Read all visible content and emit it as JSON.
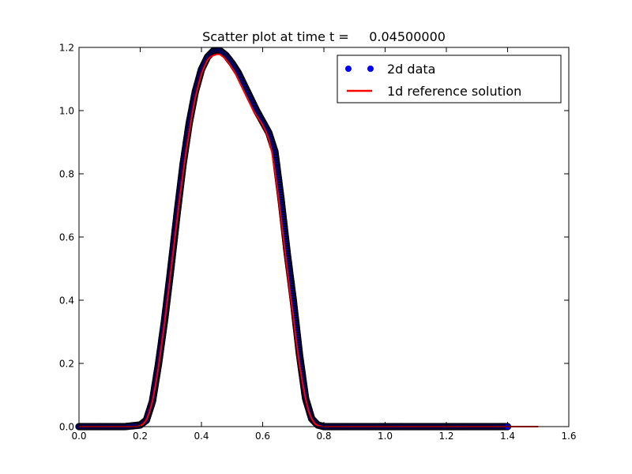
{
  "chart_data": {
    "type": "scatter",
    "title": "Scatter plot at time t =     0.04500000",
    "xlabel": "",
    "ylabel": "",
    "xlim": [
      0.0,
      1.6
    ],
    "ylim": [
      0.0,
      1.2
    ],
    "xticks": [
      "0.0",
      "0.2",
      "0.4",
      "0.6",
      "0.8",
      "1.0",
      "1.2",
      "1.4",
      "1.6"
    ],
    "yticks": [
      "0.0",
      "0.2",
      "0.4",
      "0.6",
      "0.8",
      "1.0",
      "1.2"
    ],
    "grid": false,
    "legend_position": "top-right",
    "series": [
      {
        "name": "2d data",
        "kind": "scatter",
        "color": "#0000ff",
        "x": [
          0.0,
          0.05,
          0.1,
          0.15,
          0.2,
          0.22,
          0.24,
          0.26,
          0.28,
          0.3,
          0.32,
          0.34,
          0.36,
          0.38,
          0.4,
          0.42,
          0.44,
          0.46,
          0.48,
          0.5,
          0.52,
          0.54,
          0.56,
          0.58,
          0.6,
          0.62,
          0.64,
          0.66,
          0.68,
          0.7,
          0.72,
          0.74,
          0.76,
          0.78,
          0.8,
          0.9,
          1.0,
          1.1,
          1.2,
          1.3,
          1.4
        ],
        "y": [
          0.0,
          0.0,
          0.0,
          0.0,
          0.005,
          0.02,
          0.08,
          0.2,
          0.34,
          0.5,
          0.67,
          0.83,
          0.96,
          1.06,
          1.13,
          1.17,
          1.19,
          1.19,
          1.175,
          1.15,
          1.12,
          1.08,
          1.04,
          1.0,
          0.965,
          0.93,
          0.87,
          0.72,
          0.55,
          0.4,
          0.23,
          0.09,
          0.025,
          0.005,
          0.0,
          0.0,
          0.0,
          0.0,
          0.0,
          0.0,
          0.0
        ]
      },
      {
        "name": "1d reference solution",
        "kind": "line",
        "color": "#ff0000",
        "x": [
          0.0,
          0.1,
          0.19,
          0.2,
          0.21,
          0.22,
          0.23,
          0.24,
          0.25,
          0.26,
          0.27,
          0.28,
          0.29,
          0.3,
          0.31,
          0.32,
          0.33,
          0.34,
          0.35,
          0.36,
          0.37,
          0.38,
          0.39,
          0.4,
          0.41,
          0.42,
          0.43,
          0.44,
          0.45,
          0.46,
          0.47,
          0.48,
          0.49,
          0.5,
          0.51,
          0.52,
          0.53,
          0.54,
          0.55,
          0.56,
          0.57,
          0.58,
          0.59,
          0.6,
          0.61,
          0.62,
          0.63,
          0.64,
          0.65,
          0.66,
          0.67,
          0.68,
          0.69,
          0.7,
          0.71,
          0.72,
          0.73,
          0.74,
          0.75,
          0.76,
          0.77,
          0.78,
          0.79,
          0.8,
          0.9,
          1.0,
          1.2,
          1.4,
          1.5
        ],
        "y": [
          0.0,
          0.0,
          0.0,
          0.003,
          0.008,
          0.02,
          0.045,
          0.08,
          0.13,
          0.19,
          0.26,
          0.33,
          0.41,
          0.49,
          0.57,
          0.65,
          0.73,
          0.8,
          0.87,
          0.93,
          0.99,
          1.04,
          1.08,
          1.115,
          1.14,
          1.16,
          1.17,
          1.175,
          1.178,
          1.178,
          1.172,
          1.162,
          1.15,
          1.135,
          1.12,
          1.1,
          1.08,
          1.06,
          1.04,
          1.02,
          1.0,
          0.985,
          0.97,
          0.955,
          0.935,
          0.91,
          0.87,
          0.81,
          0.74,
          0.66,
          0.58,
          0.5,
          0.42,
          0.35,
          0.27,
          0.2,
          0.14,
          0.09,
          0.05,
          0.025,
          0.01,
          0.004,
          0.001,
          0.0,
          0.0,
          0.0,
          0.0,
          0.0,
          0.0
        ]
      }
    ]
  }
}
